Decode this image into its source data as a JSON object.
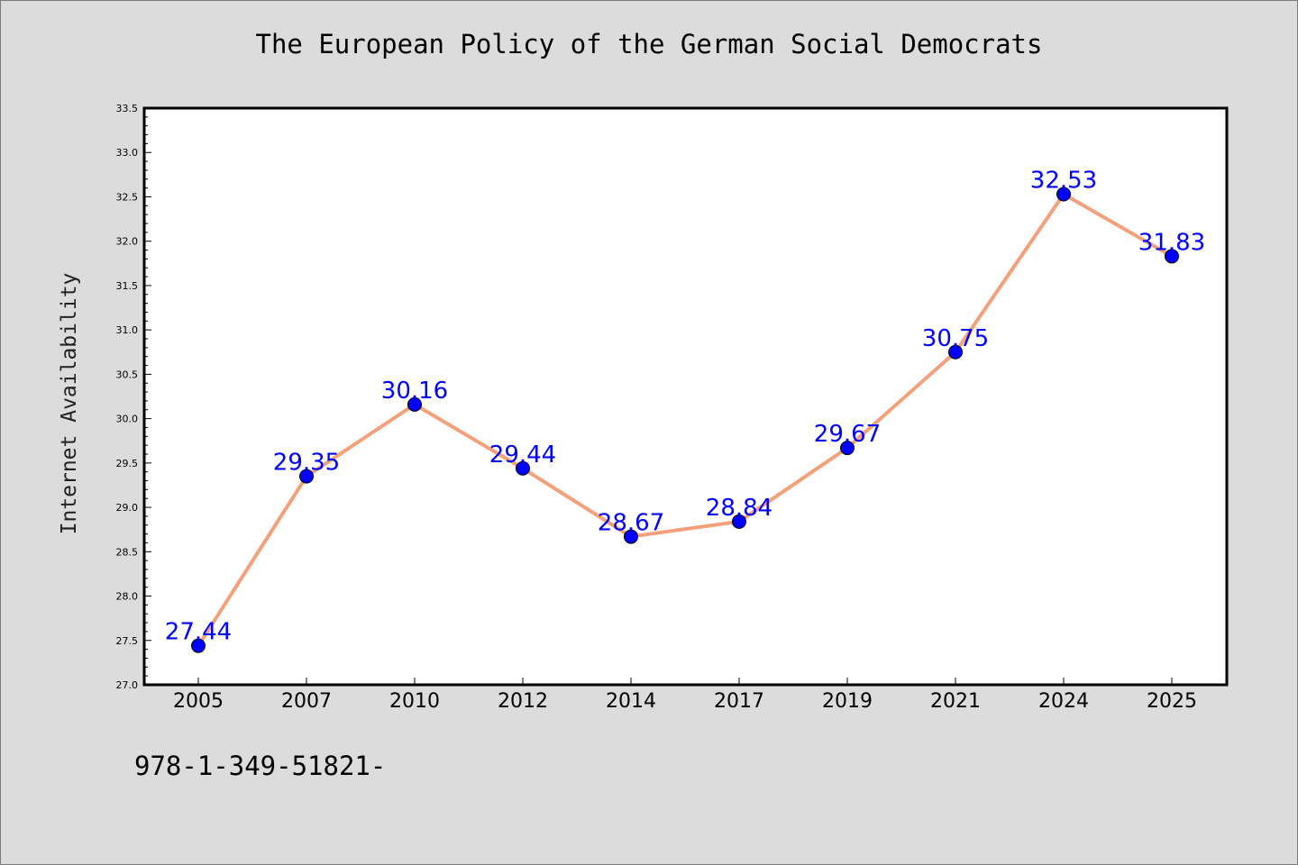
{
  "chart_data": {
    "type": "line",
    "title": "The European Policy of the German Social Democrats",
    "xlabel": "",
    "ylabel": "Internet Availability",
    "categories": [
      "2005",
      "2007",
      "2010",
      "2012",
      "2014",
      "2017",
      "2019",
      "2021",
      "2024",
      "2025"
    ],
    "series": [
      {
        "values": [
          27.44,
          29.35,
          30.16,
          29.44,
          28.67,
          28.84,
          29.67,
          30.75,
          32.53,
          31.83
        ],
        "labels": [
          "27.44",
          "29.35",
          "30.16",
          "29.44",
          "28.67",
          "28.84",
          "29.67",
          "30.75",
          "32.53",
          "31.83"
        ],
        "line_color": "#f4a07a",
        "marker_color": "#0000ff",
        "label_color": "#0000ff"
      }
    ],
    "ylim": [
      27.0,
      33.5
    ],
    "yticks": [
      "27.0",
      "27.5",
      "28.0",
      "28.5",
      "29.0",
      "29.5",
      "30.0",
      "30.5",
      "31.0",
      "31.5",
      "32.0",
      "32.5",
      "33.0",
      "33.5"
    ],
    "grid": false,
    "legend": "none"
  },
  "footnote": "978-1-349-51821-",
  "colors": {
    "background": "#dcdcdc",
    "plot_area": "#ffffff",
    "axes": "#000000"
  }
}
